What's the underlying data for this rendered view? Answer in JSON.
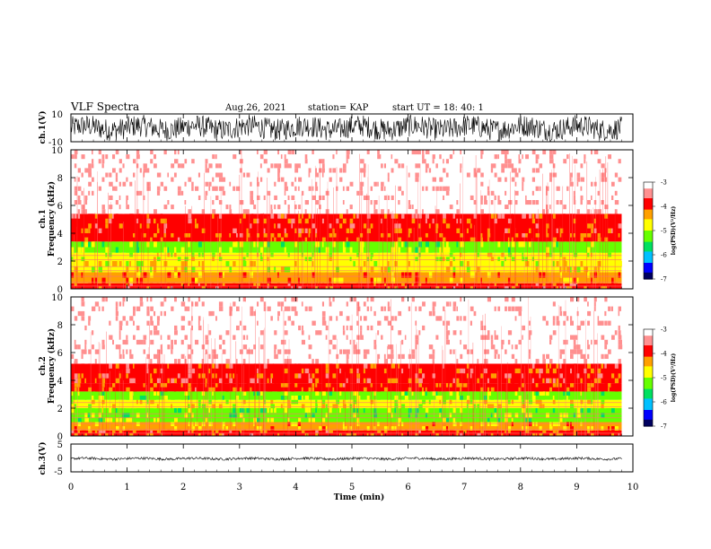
{
  "header": {
    "title": "VLF Spectra",
    "date": "Aug.26, 2021",
    "station": "station= KAP",
    "start_ut": "start  UT =   18: 40: 1"
  },
  "colors": {
    "spectrogram_scale": [
      "#ffffff",
      "#ff9090",
      "#ff0000",
      "#ffa000",
      "#ffff00",
      "#66ff00",
      "#00e060",
      "#00c0ff",
      "#0000ff",
      "#000060"
    ],
    "waveform": "#000000"
  },
  "chart_data": [
    {
      "type": "line",
      "panel": "ch1-waveform",
      "ylabel": "ch.1(V)",
      "ylim": [
        -10,
        10
      ],
      "yticks": [
        "10",
        "-10"
      ],
      "xlim": [
        0,
        9.8
      ],
      "description_values": {
        "typical_min": -8,
        "typical_max": 8
      }
    },
    {
      "type": "heatmap",
      "panel": "ch1-spectrogram",
      "ylabel": "ch.1\nFrequency (kHz)",
      "ylim": [
        0,
        10
      ],
      "yticks": [
        "0",
        "2",
        "4",
        "6",
        "8",
        "10"
      ],
      "xlim": [
        0,
        9.8
      ],
      "bands": [
        {
          "from_khz": 0.0,
          "to_khz": 0.4,
          "log_psd": -4.0
        },
        {
          "from_khz": 0.4,
          "to_khz": 1.2,
          "log_psd": -4.3
        },
        {
          "from_khz": 1.2,
          "to_khz": 2.0,
          "log_psd": -4.7
        },
        {
          "from_khz": 2.0,
          "to_khz": 2.6,
          "log_psd": -4.9
        },
        {
          "from_khz": 2.6,
          "to_khz": 3.4,
          "log_psd": -5.1
        },
        {
          "from_khz": 3.4,
          "to_khz": 4.0,
          "log_psd": -4.1
        },
        {
          "from_khz": 4.0,
          "to_khz": 5.4,
          "log_psd": -3.9
        },
        {
          "from_khz": 5.4,
          "to_khz": 10.0,
          "log_psd": -3.2
        }
      ],
      "colorbar": {
        "label": "log(PSD)(V²/Hz)",
        "range": [
          -7,
          -3
        ],
        "ticks": [
          "-3",
          "-4",
          "-5",
          "-6",
          "-7"
        ]
      }
    },
    {
      "type": "heatmap",
      "panel": "ch2-spectrogram",
      "ylabel": "ch.2\nFrequency (kHz)",
      "ylim": [
        0,
        10
      ],
      "yticks": [
        "0",
        "2",
        "4",
        "6",
        "8",
        "10"
      ],
      "xlim": [
        0,
        9.8
      ],
      "bands": [
        {
          "from_khz": 0.0,
          "to_khz": 0.4,
          "log_psd": -4.0
        },
        {
          "from_khz": 0.4,
          "to_khz": 1.0,
          "log_psd": -4.5
        },
        {
          "from_khz": 1.0,
          "to_khz": 2.0,
          "log_psd": -5.2
        },
        {
          "from_khz": 2.0,
          "to_khz": 2.6,
          "log_psd": -4.8
        },
        {
          "from_khz": 2.6,
          "to_khz": 3.2,
          "log_psd": -5.1
        },
        {
          "from_khz": 3.2,
          "to_khz": 3.8,
          "log_psd": -4.1
        },
        {
          "from_khz": 3.8,
          "to_khz": 5.2,
          "log_psd": -3.9
        },
        {
          "from_khz": 5.2,
          "to_khz": 10.0,
          "log_psd": -3.2
        }
      ],
      "colorbar": {
        "label": "log(PSD)(V²/Hz)",
        "range": [
          -7,
          -3
        ],
        "ticks": [
          "-3",
          "-4",
          "-5",
          "-6",
          "-7"
        ]
      }
    },
    {
      "type": "line",
      "panel": "ch3-waveform",
      "ylabel": "ch.3(V)",
      "ylim": [
        -5,
        5
      ],
      "yticks": [
        "5",
        "0",
        "-5"
      ],
      "xlim": [
        0,
        9.8
      ],
      "description_values": {
        "typical_min": -1,
        "typical_max": 0.5
      }
    }
  ],
  "xaxis": {
    "label": "Time (min)",
    "range": [
      0,
      10
    ],
    "ticks": [
      "0",
      "1",
      "2",
      "3",
      "4",
      "5",
      "6",
      "7",
      "8",
      "9",
      "10"
    ]
  }
}
